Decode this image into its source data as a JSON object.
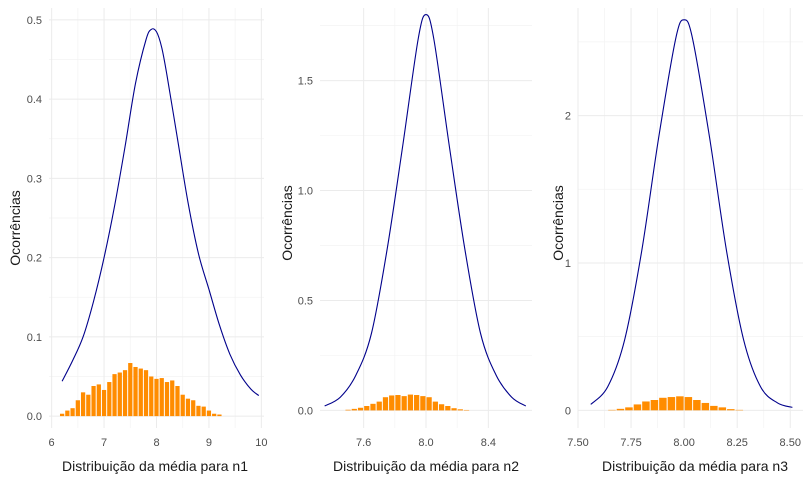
{
  "chart_data": [
    {
      "type": "bar",
      "xlabel": "Distribuição da média para n1",
      "ylabel": "Ocorrências",
      "xlim": [
        5.95,
        10.05
      ],
      "ylim": [
        -0.015,
        0.515
      ],
      "xticks": [
        6,
        7,
        8,
        9,
        10
      ],
      "xtick_labels": [
        "6",
        "7",
        "8",
        "9",
        "10"
      ],
      "yticks": [
        0.0,
        0.1,
        0.2,
        0.3,
        0.4,
        0.5
      ],
      "ytick_labels": [
        "0.0",
        "0.1",
        "0.2",
        "0.3",
        "0.4",
        "0.5"
      ],
      "grid": true,
      "bar_color": "#ff8c00",
      "line_color": "#00008b",
      "histogram": {
        "bin_start": 6.15,
        "bin_width": 0.1,
        "values": [
          0.003,
          0.007,
          0.01,
          0.02,
          0.03,
          0.027,
          0.038,
          0.04,
          0.033,
          0.043,
          0.053,
          0.055,
          0.058,
          0.067,
          0.062,
          0.06,
          0.058,
          0.05,
          0.047,
          0.048,
          0.043,
          0.045,
          0.038,
          0.027,
          0.022,
          0.02,
          0.013,
          0.012,
          0.007,
          0.003,
          0.002
        ]
      },
      "density_curve": {
        "x": [
          6.2,
          6.4,
          6.6,
          6.8,
          7.0,
          7.2,
          7.4,
          7.6,
          7.8,
          7.9,
          8.0,
          8.1,
          8.2,
          8.4,
          8.6,
          8.8,
          9.0,
          9.2,
          9.4,
          9.6,
          9.8,
          9.95
        ],
        "y": [
          0.044,
          0.07,
          0.1,
          0.145,
          0.2,
          0.265,
          0.34,
          0.42,
          0.475,
          0.488,
          0.485,
          0.465,
          0.43,
          0.35,
          0.27,
          0.205,
          0.16,
          0.115,
          0.078,
          0.052,
          0.034,
          0.026
        ]
      }
    },
    {
      "type": "bar",
      "xlabel": "Distribuição da média para n2",
      "ylabel": "Ocorrências",
      "xlim": [
        7.32,
        8.68
      ],
      "ylim": [
        -0.08,
        1.83
      ],
      "xticks": [
        7.6,
        8.0,
        8.4
      ],
      "xtick_labels": [
        "7.6",
        "8.0",
        "8.4"
      ],
      "yticks": [
        0.0,
        0.5,
        1.0,
        1.5
      ],
      "ytick_labels": [
        "0.0",
        "0.5",
        "1.0",
        "1.5"
      ],
      "grid": true,
      "bar_color": "#ff8c00",
      "line_color": "#00008b",
      "histogram": {
        "bin_start": 7.48,
        "bin_width": 0.04,
        "values": [
          0.003,
          0.007,
          0.012,
          0.02,
          0.03,
          0.04,
          0.06,
          0.068,
          0.07,
          0.065,
          0.072,
          0.07,
          0.065,
          0.06,
          0.04,
          0.028,
          0.02,
          0.01,
          0.005,
          0.002
        ]
      },
      "density_curve": {
        "x": [
          7.35,
          7.45,
          7.55,
          7.65,
          7.75,
          7.85,
          7.95,
          8.0,
          8.05,
          8.15,
          8.25,
          8.35,
          8.45,
          8.55,
          8.64
        ],
        "y": [
          0.02,
          0.06,
          0.16,
          0.35,
          0.73,
          1.2,
          1.69,
          1.8,
          1.69,
          1.2,
          0.73,
          0.35,
          0.16,
          0.06,
          0.02
        ]
      }
    },
    {
      "type": "bar",
      "xlabel": "Distribuição da média para n3",
      "ylabel": "Ocorrências",
      "xlim": [
        7.5,
        8.56
      ],
      "ylim": [
        -0.12,
        2.73
      ],
      "xticks": [
        7.5,
        7.75,
        8.0,
        8.25,
        8.5
      ],
      "xtick_labels": [
        "7.50",
        "7.75",
        "8.00",
        "8.25",
        "8.50"
      ],
      "yticks": [
        0,
        1,
        2
      ],
      "ytick_labels": [
        "0",
        "1",
        "2"
      ],
      "grid": true,
      "bar_color": "#ff8c00",
      "line_color": "#00008b",
      "histogram": {
        "bin_start": 7.64,
        "bin_width": 0.04,
        "values": [
          0.003,
          0.01,
          0.02,
          0.04,
          0.06,
          0.07,
          0.085,
          0.09,
          0.095,
          0.09,
          0.07,
          0.05,
          0.03,
          0.02,
          0.008,
          0.003
        ]
      },
      "density_curve": {
        "x": [
          7.56,
          7.64,
          7.72,
          7.8,
          7.88,
          7.96,
          8.0,
          8.04,
          8.12,
          8.2,
          8.28,
          8.36,
          8.44,
          8.51
        ],
        "y": [
          0.04,
          0.16,
          0.48,
          1.08,
          1.85,
          2.52,
          2.65,
          2.52,
          1.85,
          1.08,
          0.48,
          0.16,
          0.05,
          0.02
        ]
      }
    }
  ]
}
